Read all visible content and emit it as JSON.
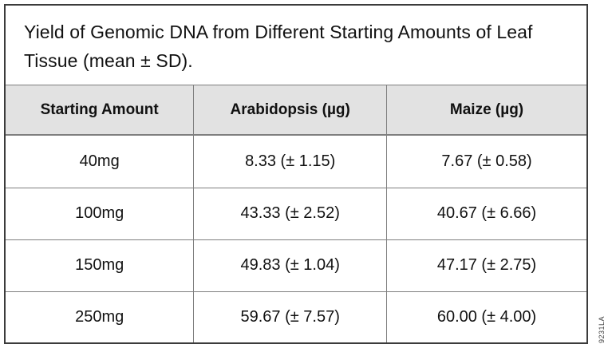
{
  "figure": {
    "title": "Yield of Genomic DNA from Different Starting Amounts of Leaf Tissue (mean ± SD).",
    "watermark": "9231LA"
  },
  "table": {
    "columns": [
      {
        "label": "Starting Amount"
      },
      {
        "label": "Arabidopsis (µg)"
      },
      {
        "label": "Maize (µg)"
      }
    ],
    "rows": [
      {
        "cells": [
          "40mg",
          "8.33 (± 1.15)",
          "7.67 (± 0.58)"
        ]
      },
      {
        "cells": [
          "100mg",
          "43.33 (± 2.52)",
          "40.67 (± 6.66)"
        ]
      },
      {
        "cells": [
          "150mg",
          "49.83 (± 1.04)",
          "47.17 (± 2.75)"
        ]
      },
      {
        "cells": [
          "250mg",
          "59.67 (± 7.57)",
          "60.00 (± 4.00)"
        ]
      }
    ]
  },
  "colors": {
    "header_bg": "#e2e2e2",
    "inner_border": "#7f7f7f",
    "outer_border": "#3b3b3b",
    "text": "#111111"
  }
}
